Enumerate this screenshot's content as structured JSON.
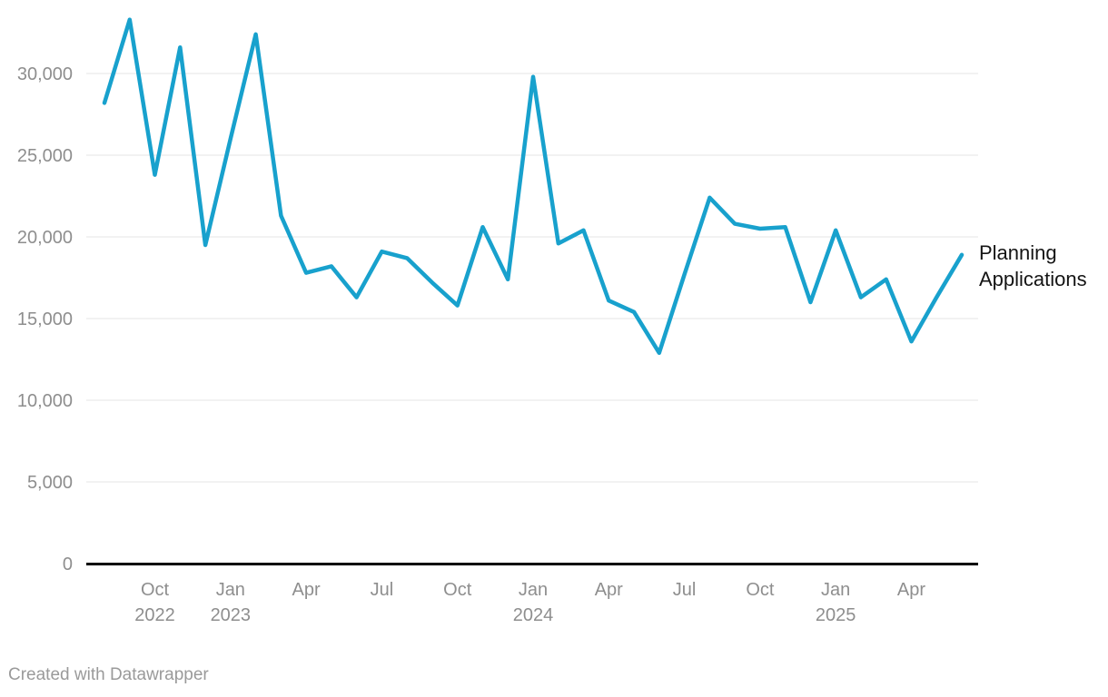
{
  "chart_data": {
    "type": "line",
    "title": "",
    "xlabel": "",
    "ylabel": "",
    "x": [
      "Aug 2022",
      "Sep 2022",
      "Oct 2022",
      "Nov 2022",
      "Dec 2022",
      "Jan 2023",
      "Feb 2023",
      "Mar 2023",
      "Apr 2023",
      "May 2023",
      "Jun 2023",
      "Jul 2023",
      "Aug 2023",
      "Sep 2023",
      "Oct 2023",
      "Nov 2023",
      "Dec 2023",
      "Jan 2024",
      "Feb 2024",
      "Mar 2024",
      "Apr 2024",
      "May 2024",
      "Jun 2024",
      "Jul 2024",
      "Aug 2024",
      "Sep 2024",
      "Oct 2024",
      "Nov 2024",
      "Dec 2024",
      "Jan 2025",
      "Feb 2025",
      "Mar 2025",
      "Apr 2025",
      "May 2025",
      "Jun 2025"
    ],
    "series": [
      {
        "name": "Planning Applications",
        "values": [
          28200,
          33300,
          23800,
          31600,
          19500,
          26000,
          32400,
          21300,
          17800,
          18200,
          16300,
          19100,
          18700,
          17200,
          15800,
          20600,
          17400,
          29800,
          19600,
          20400,
          16100,
          15400,
          12900,
          17700,
          22400,
          20800,
          20500,
          20600,
          16000,
          20400,
          16300,
          17400,
          13600,
          16300,
          18900
        ]
      }
    ],
    "ylim": [
      0,
      33500
    ],
    "y_ticks": [
      0,
      5000,
      10000,
      15000,
      20000,
      25000,
      30000
    ],
    "x_ticks": [
      {
        "month_index": 2,
        "label": "Oct",
        "year": "2022"
      },
      {
        "month_index": 5,
        "label": "Jan",
        "year": "2023"
      },
      {
        "month_index": 8,
        "label": "Apr",
        "year": ""
      },
      {
        "month_index": 11,
        "label": "Jul",
        "year": ""
      },
      {
        "month_index": 14,
        "label": "Oct",
        "year": ""
      },
      {
        "month_index": 17,
        "label": "Jan",
        "year": "2024"
      },
      {
        "month_index": 20,
        "label": "Apr",
        "year": ""
      },
      {
        "month_index": 23,
        "label": "Jul",
        "year": ""
      },
      {
        "month_index": 26,
        "label": "Oct",
        "year": ""
      },
      {
        "month_index": 29,
        "label": "Jan",
        "year": "2025"
      },
      {
        "month_index": 32,
        "label": "Apr",
        "year": ""
      }
    ],
    "grid": "horizontal",
    "legend_position": "right-of-line-end"
  },
  "colors": {
    "line": "#18a1cd",
    "grid": "#e4e4e4",
    "axis": "#000000",
    "tick_text": "#8e8e8e",
    "series_label": "#141414",
    "credit_text": "#9a9a9a"
  },
  "footer": {
    "credit": "Created with Datawrapper"
  }
}
